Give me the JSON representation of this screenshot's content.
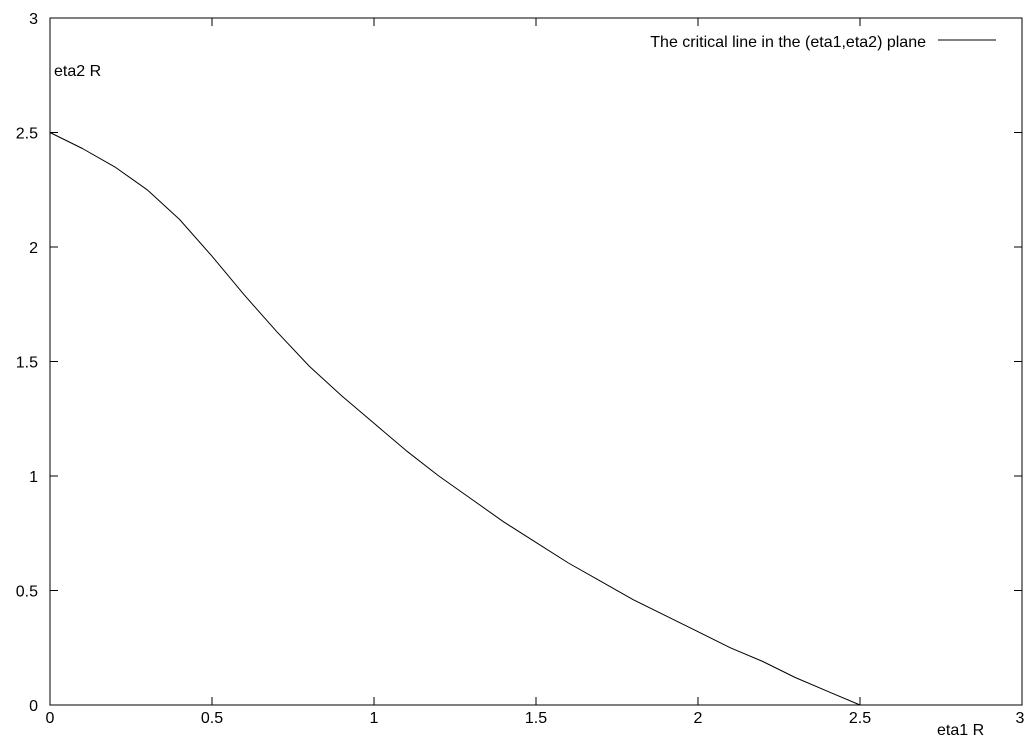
{
  "chart_data": {
    "type": "line",
    "title": "",
    "xlabel": "eta1 R",
    "ylabel": "eta2 R",
    "xlim": [
      0,
      3
    ],
    "ylim": [
      0,
      3
    ],
    "grid": false,
    "legend_position": "top-right",
    "x_ticks": [
      {
        "value": 0,
        "label": "0"
      },
      {
        "value": 0.5,
        "label": "0.5"
      },
      {
        "value": 1,
        "label": "1"
      },
      {
        "value": 1.5,
        "label": "1.5"
      },
      {
        "value": 2,
        "label": "2"
      },
      {
        "value": 2.5,
        "label": "2.5"
      },
      {
        "value": 3,
        "label": "3"
      }
    ],
    "y_ticks": [
      {
        "value": 0,
        "label": "0"
      },
      {
        "value": 0.5,
        "label": "0.5"
      },
      {
        "value": 1,
        "label": "1"
      },
      {
        "value": 1.5,
        "label": "1.5"
      },
      {
        "value": 2,
        "label": "2"
      },
      {
        "value": 2.5,
        "label": "2.5"
      },
      {
        "value": 3,
        "label": "3"
      }
    ],
    "series": [
      {
        "name": "The critical line in the (eta1,eta2) plane",
        "color": "#000000",
        "x": [
          0,
          0.1,
          0.2,
          0.3,
          0.4,
          0.5,
          0.6,
          0.7,
          0.8,
          0.9,
          1.0,
          1.1,
          1.2,
          1.3,
          1.4,
          1.5,
          1.6,
          1.7,
          1.8,
          1.9,
          2.0,
          2.1,
          2.2,
          2.3,
          2.4,
          2.5
        ],
        "y": [
          2.5,
          2.43,
          2.35,
          2.25,
          2.12,
          1.96,
          1.79,
          1.63,
          1.48,
          1.35,
          1.23,
          1.11,
          1.0,
          0.9,
          0.8,
          0.71,
          0.62,
          0.54,
          0.46,
          0.39,
          0.32,
          0.25,
          0.19,
          0.12,
          0.06,
          0.0
        ]
      }
    ]
  }
}
